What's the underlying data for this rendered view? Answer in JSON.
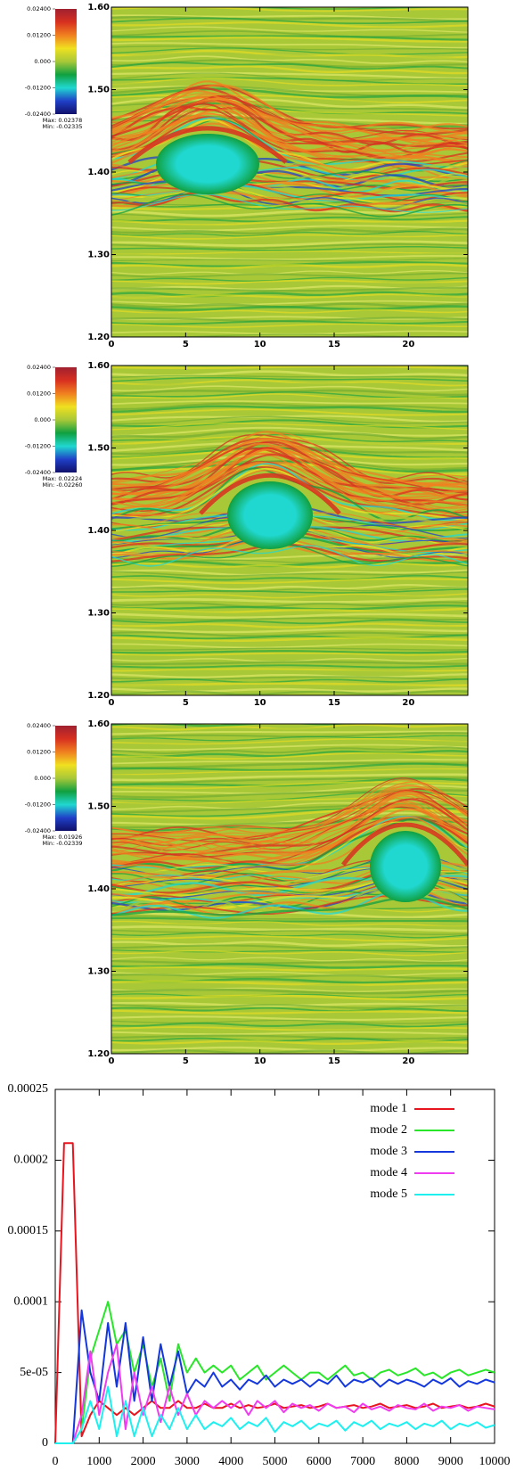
{
  "chart_data": [
    {
      "type": "heatmap",
      "xlim": [
        0,
        24
      ],
      "xticks": [
        0,
        5,
        10,
        15,
        20
      ],
      "ylim": [
        1.2,
        1.6
      ],
      "yticks": [
        {
          "value": 1.2,
          "label": "1.20"
        },
        {
          "value": 1.3,
          "label": "1.30"
        },
        {
          "value": 1.4,
          "label": "1.40"
        },
        {
          "value": 1.5,
          "label": "1.50"
        },
        {
          "value": 1.6,
          "label": "1.60"
        }
      ],
      "colorbar": {
        "lim": [
          -0.024,
          0.024
        ],
        "ticks": [
          {
            "value": -0.024,
            "label": "-0.02400"
          },
          {
            "value": -0.012,
            "label": "-0.01200"
          },
          {
            "value": 0,
            "label": "0.000"
          },
          {
            "value": 0.012,
            "label": "0.01200"
          },
          {
            "value": 0.024,
            "label": "0.02400"
          }
        ],
        "colors": [
          "#10106a",
          "#2040c8",
          "#20d8d0",
          "#10a040",
          "#a8c838",
          "#f0e020",
          "#f08020",
          "#d83020",
          "#a02030"
        ]
      },
      "annotations": [
        "Max: 0.02378",
        "Min: -0.02335"
      ]
    },
    {
      "type": "heatmap",
      "xlim": [
        0,
        24
      ],
      "xticks": [
        0,
        5,
        10,
        15,
        20
      ],
      "ylim": [
        1.2,
        1.6
      ],
      "yticks": [
        {
          "value": 1.2,
          "label": "1.20"
        },
        {
          "value": 1.3,
          "label": "1.30"
        },
        {
          "value": 1.4,
          "label": "1.40"
        },
        {
          "value": 1.5,
          "label": "1.50"
        },
        {
          "value": 1.6,
          "label": "1.60"
        }
      ],
      "colorbar": {
        "lim": [
          -0.024,
          0.024
        ],
        "ticks": [
          {
            "value": -0.024,
            "label": "-0.02400"
          },
          {
            "value": -0.012,
            "label": "-0.01200"
          },
          {
            "value": 0,
            "label": "0.000"
          },
          {
            "value": 0.012,
            "label": "0.01200"
          },
          {
            "value": 0.024,
            "label": "0.02400"
          }
        ],
        "colors": [
          "#10106a",
          "#2040c8",
          "#20d8d0",
          "#10a040",
          "#a8c838",
          "#f0e020",
          "#f08020",
          "#d83020",
          "#a02030"
        ]
      },
      "annotations": [
        "Max: 0.02224",
        "Min: -0.02260"
      ]
    },
    {
      "type": "heatmap",
      "xlim": [
        0,
        24
      ],
      "xticks": [
        0,
        5,
        10,
        15,
        20
      ],
      "ylim": [
        1.2,
        1.6
      ],
      "yticks": [
        {
          "value": 1.2,
          "label": "1.20"
        },
        {
          "value": 1.3,
          "label": "1.30"
        },
        {
          "value": 1.4,
          "label": "1.40"
        },
        {
          "value": 1.5,
          "label": "1.50"
        },
        {
          "value": 1.6,
          "label": "1.60"
        }
      ],
      "colorbar": {
        "lim": [
          -0.024,
          0.024
        ],
        "ticks": [
          {
            "value": -0.024,
            "label": "-0.02400"
          },
          {
            "value": -0.012,
            "label": "-0.01200"
          },
          {
            "value": 0,
            "label": "0.000"
          },
          {
            "value": 0.012,
            "label": "0.01200"
          },
          {
            "value": 0.024,
            "label": "0.02400"
          }
        ],
        "colors": [
          "#10106a",
          "#2040c8",
          "#20d8d0",
          "#10a040",
          "#a8c838",
          "#f0e020",
          "#f08020",
          "#d83020",
          "#a02030"
        ]
      },
      "annotations": [
        "Max: 0.01926",
        "Min: -0.02339"
      ]
    },
    {
      "type": "line",
      "xlim": [
        0,
        10000
      ],
      "xticks": [
        0,
        1000,
        2000,
        3000,
        4000,
        5000,
        6000,
        7000,
        8000,
        9000,
        10000
      ],
      "ylim": [
        0,
        0.00025
      ],
      "yticks": [
        0,
        {
          "value": 5e-05,
          "label": "5e-05"
        },
        0.0001,
        0.00015,
        0.0002,
        0.00025
      ],
      "legend": "top-right",
      "x": [
        0,
        200,
        400,
        600,
        800,
        1000,
        1200,
        1400,
        1600,
        1800,
        2000,
        2200,
        2400,
        2600,
        2800,
        3000,
        3200,
        3400,
        3600,
        3800,
        4000,
        4200,
        4400,
        4600,
        4800,
        5000,
        5200,
        5400,
        5600,
        5800,
        6000,
        6200,
        6400,
        6600,
        6800,
        7000,
        7200,
        7400,
        7600,
        7800,
        8000,
        8200,
        8400,
        8600,
        8800,
        9000,
        9200,
        9400,
        9600,
        9800,
        10000
      ],
      "series": [
        {
          "name": "mode 1",
          "color": "#e8141e",
          "values": [
            0,
            0.000212,
            0.000212,
            5e-06,
            2e-05,
            3e-05,
            2.5e-05,
            2e-05,
            2.5e-05,
            2e-05,
            2.5e-05,
            3e-05,
            2.5e-05,
            2.5e-05,
            3e-05,
            2.5e-05,
            2.5e-05,
            2.8e-05,
            2.5e-05,
            2.5e-05,
            2.8e-05,
            2.5e-05,
            2.7e-05,
            2.5e-05,
            2.6e-05,
            2.8e-05,
            2.5e-05,
            2.6e-05,
            2.7e-05,
            2.5e-05,
            2.6e-05,
            2.8e-05,
            2.5e-05,
            2.6e-05,
            2.7e-05,
            2.5e-05,
            2.6e-05,
            2.8e-05,
            2.5e-05,
            2.6e-05,
            2.7e-05,
            2.5e-05,
            2.6e-05,
            2.8e-05,
            2.5e-05,
            2.6e-05,
            2.7e-05,
            2.5e-05,
            2.6e-05,
            2.8e-05,
            2.6e-05
          ]
        },
        {
          "name": "mode 2",
          "color": "#28e628",
          "values": [
            0,
            0,
            0,
            1e-05,
            6e-05,
            8e-05,
            0.0001,
            7e-05,
            8e-05,
            5e-05,
            7e-05,
            4e-05,
            6e-05,
            3e-05,
            7e-05,
            5e-05,
            6e-05,
            5e-05,
            5.5e-05,
            5e-05,
            5.5e-05,
            4.5e-05,
            5e-05,
            5.5e-05,
            4.5e-05,
            5e-05,
            5.5e-05,
            5e-05,
            4.5e-05,
            5e-05,
            5e-05,
            4.5e-05,
            5e-05,
            5.5e-05,
            4.8e-05,
            5e-05,
            4.5e-05,
            5e-05,
            5.2e-05,
            4.8e-05,
            5e-05,
            5.3e-05,
            4.8e-05,
            5e-05,
            4.6e-05,
            5e-05,
            5.2e-05,
            4.8e-05,
            5e-05,
            5.2e-05,
            5e-05
          ]
        },
        {
          "name": "mode 3",
          "color": "#1438dc",
          "values": [
            0,
            0,
            0,
            9.4e-05,
            5e-05,
            3e-05,
            8.5e-05,
            4e-05,
            8.5e-05,
            3e-05,
            7.5e-05,
            3e-05,
            7e-05,
            4e-05,
            6.5e-05,
            3.5e-05,
            4.5e-05,
            4e-05,
            5e-05,
            4e-05,
            4.5e-05,
            3.8e-05,
            4.5e-05,
            4.2e-05,
            4.8e-05,
            4e-05,
            4.5e-05,
            4.2e-05,
            4.5e-05,
            4e-05,
            4.5e-05,
            4.2e-05,
            4.8e-05,
            4e-05,
            4.5e-05,
            4.3e-05,
            4.6e-05,
            4e-05,
            4.5e-05,
            4.2e-05,
            4.5e-05,
            4.3e-05,
            4e-05,
            4.5e-05,
            4.2e-05,
            4.6e-05,
            4e-05,
            4.4e-05,
            4.2e-05,
            4.5e-05,
            4.3e-05
          ]
        },
        {
          "name": "mode 4",
          "color": "#f03cf0",
          "values": [
            0,
            0,
            0,
            2e-05,
            6.5e-05,
            2e-05,
            5e-05,
            7e-05,
            1e-05,
            5e-05,
            2e-05,
            4e-05,
            1.5e-05,
            4e-05,
            2e-05,
            3.5e-05,
            2e-05,
            3e-05,
            2.5e-05,
            3e-05,
            2.5e-05,
            3e-05,
            2e-05,
            3e-05,
            2.5e-05,
            3e-05,
            2.2e-05,
            2.8e-05,
            2.5e-05,
            2.7e-05,
            2.3e-05,
            2.8e-05,
            2.5e-05,
            2.6e-05,
            2.2e-05,
            2.8e-05,
            2.4e-05,
            2.6e-05,
            2.3e-05,
            2.7e-05,
            2.5e-05,
            2.4e-05,
            2.8e-05,
            2.3e-05,
            2.6e-05,
            2.5e-05,
            2.7e-05,
            2.3e-05,
            2.6e-05,
            2.5e-05,
            2.4e-05
          ]
        },
        {
          "name": "mode 5",
          "color": "#1ef0f0",
          "values": [
            0,
            0,
            0,
            1e-05,
            3e-05,
            1e-05,
            4e-05,
            5e-06,
            3e-05,
            5e-06,
            2.5e-05,
            5e-06,
            2e-05,
            1e-05,
            2.5e-05,
            1e-05,
            2e-05,
            1e-05,
            1.5e-05,
            1.2e-05,
            1.8e-05,
            1e-05,
            1.5e-05,
            1.2e-05,
            1.8e-05,
            8e-06,
            1.5e-05,
            1.2e-05,
            1.6e-05,
            1e-05,
            1.4e-05,
            1.2e-05,
            1.6e-05,
            9e-06,
            1.5e-05,
            1.2e-05,
            1.6e-05,
            1e-05,
            1.4e-05,
            1.2e-05,
            1.5e-05,
            1e-05,
            1.4e-05,
            1.2e-05,
            1.6e-05,
            1e-05,
            1.4e-05,
            1.2e-05,
            1.5e-05,
            1.1e-05,
            1.3e-05
          ]
        }
      ]
    }
  ]
}
